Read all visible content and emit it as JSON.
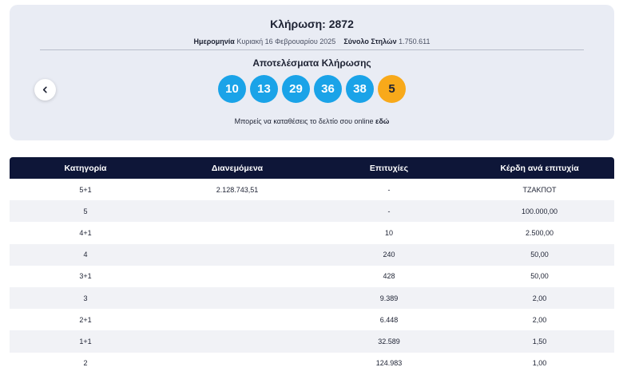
{
  "draw": {
    "title": "Κλήρωση: 2872",
    "date_label": "Ημερομηνία",
    "date_value": "Κυριακή 16 Φεβρουαρίου 2025",
    "columns_label": "Σύνολο Στηλών",
    "columns_value": "1.750.611",
    "results_label": "Αποτελέσματα Κλήρωσης",
    "numbers": [
      "10",
      "13",
      "29",
      "36",
      "38"
    ],
    "bonus": "5",
    "deposit_text": "Μπορείς να καταθέσεις το δελτίο σου online",
    "deposit_link": "εδώ",
    "prev_icon": "chevron-left-icon",
    "colors": {
      "ball": "#1aa3e8",
      "bonus": "#f8a91a",
      "header": "#0e1638"
    }
  },
  "table": {
    "headers": [
      "Κατηγορία",
      "Διανεμόμενα",
      "Επιτυχίες",
      "Κέρδη ανά επιτυχία"
    ],
    "rows": [
      [
        "5+1",
        "2.128.743,51",
        "-",
        "ΤΖΑΚΠΟΤ"
      ],
      [
        "5",
        "",
        "-",
        "100.000,00"
      ],
      [
        "4+1",
        "",
        "10",
        "2.500,00"
      ],
      [
        "4",
        "",
        "240",
        "50,00"
      ],
      [
        "3+1",
        "",
        "428",
        "50,00"
      ],
      [
        "3",
        "",
        "9.389",
        "2,00"
      ],
      [
        "2+1",
        "",
        "6.448",
        "2,00"
      ],
      [
        "1+1",
        "",
        "32.589",
        "1,50"
      ],
      [
        "2",
        "",
        "124.983",
        "1,00"
      ]
    ]
  }
}
